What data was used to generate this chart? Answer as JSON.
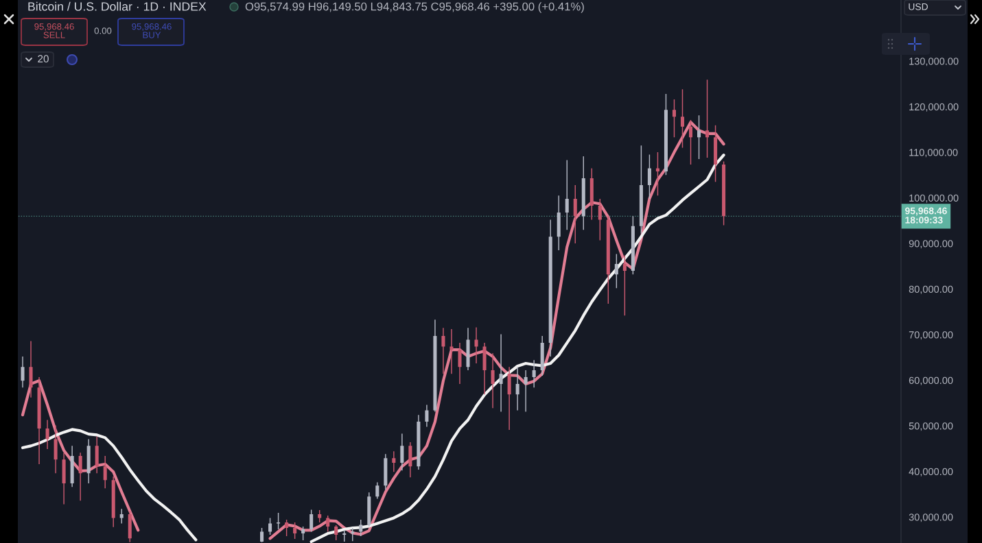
{
  "chart_data": {
    "type": "candlestick",
    "title": "Bitcoin / U.S. Dollar · 1D · INDEX",
    "subtitle": "O95,574.99 H96,149.50 L94,843.75 C95,968.46 +395.00 (+0.41%)",
    "categories": [
      null,
      null,
      null,
      null,
      null,
      null,
      null,
      null,
      null,
      null,
      null,
      null,
      null,
      null,
      null,
      null,
      null,
      null,
      null,
      null,
      null,
      null,
      null,
      null,
      null,
      null,
      null,
      null,
      null,
      null,
      null,
      null,
      null,
      null,
      null,
      null,
      null,
      null,
      null,
      null,
      null,
      null,
      null,
      null,
      null,
      null,
      null,
      null,
      null,
      null,
      null,
      null,
      null,
      null,
      null,
      null,
      null,
      null,
      null,
      null,
      null,
      null,
      null,
      null,
      null,
      null,
      null,
      null,
      null,
      null,
      null,
      null,
      null,
      null,
      null,
      null,
      null,
      null,
      null,
      null,
      null,
      null,
      null,
      null,
      null,
      null,
      null,
      null,
      null,
      null,
      null,
      null,
      null,
      null,
      null,
      null,
      null,
      null,
      null,
      null,
      null,
      null,
      null,
      null,
      null,
      null,
      null
    ],
    "ohlc": [
      [
        59900,
        65200,
        58400,
        62900
      ],
      [
        62900,
        68600,
        56200,
        58400
      ],
      [
        58400,
        60700,
        41600,
        49400
      ],
      [
        49400,
        51300,
        44900,
        47100
      ],
      [
        47100,
        50100,
        39600,
        42600
      ],
      [
        42600,
        44100,
        32800,
        37400
      ],
      [
        37400,
        45600,
        36600,
        43400
      ],
      [
        43400,
        44100,
        33600,
        39600
      ],
      [
        39600,
        47100,
        37400,
        45600
      ],
      [
        45600,
        47700,
        39600,
        41100
      ],
      [
        41100,
        43400,
        36300,
        38100
      ],
      [
        38100,
        38900,
        27800,
        29800
      ],
      [
        29800,
        31800,
        28600,
        30600
      ],
      [
        30600,
        31300,
        24500,
        25300
      ],
      null,
      null,
      null,
      null,
      null,
      null,
      null,
      null,
      null,
      null,
      null,
      null,
      null,
      null,
      null,
      [
        24600,
        27600,
        24500,
        26800
      ],
      [
        26800,
        29800,
        26100,
        28600
      ],
      [
        28600,
        30900,
        27300,
        28800
      ],
      [
        28800,
        29400,
        25800,
        27600
      ],
      [
        27600,
        28800,
        25200,
        26400
      ],
      [
        26400,
        27900,
        24900,
        27300
      ],
      [
        27300,
        31600,
        26800,
        30600
      ],
      [
        30600,
        31500,
        28800,
        29800
      ],
      [
        29800,
        30300,
        26800,
        27900
      ],
      [
        27900,
        28200,
        24900,
        26100
      ],
      [
        26100,
        27100,
        24600,
        26400
      ],
      [
        26400,
        27600,
        24700,
        26800
      ],
      [
        26800,
        29400,
        25800,
        28300
      ],
      [
        28300,
        35400,
        27900,
        34500
      ],
      [
        34500,
        37600,
        34000,
        36900
      ],
      [
        36900,
        43800,
        36000,
        42900
      ],
      [
        42900,
        44400,
        39900,
        41900
      ],
      [
        41900,
        48300,
        40200,
        45600
      ],
      [
        45600,
        46400,
        38700,
        41100
      ],
      [
        41100,
        52400,
        40400,
        50900
      ],
      [
        50900,
        54600,
        49800,
        53400
      ],
      [
        53400,
        73300,
        53100,
        69700
      ],
      [
        69700,
        71500,
        61400,
        67400
      ],
      [
        67400,
        71200,
        61400,
        66700
      ],
      [
        66700,
        68200,
        59200,
        62900
      ],
      [
        62900,
        71500,
        62200,
        68900
      ],
      [
        68900,
        71600,
        63700,
        67400
      ],
      [
        67400,
        68200,
        56900,
        62200
      ],
      [
        62200,
        65900,
        53900,
        59200
      ],
      [
        59200,
        70100,
        53100,
        61400
      ],
      [
        61400,
        62900,
        49100,
        56900
      ],
      [
        56900,
        62900,
        53400,
        59200
      ],
      [
        59200,
        62200,
        53100,
        60700
      ],
      [
        60700,
        64400,
        58400,
        62200
      ],
      [
        62200,
        69700,
        61000,
        68200
      ],
      [
        68200,
        95200,
        65200,
        91500
      ],
      [
        91500,
        100500,
        88500,
        96800
      ],
      [
        96800,
        108300,
        93000,
        99800
      ],
      [
        99800,
        102800,
        90000,
        96000
      ],
      [
        96000,
        109100,
        93000,
        104300
      ],
      [
        104300,
        106500,
        95200,
        98300
      ],
      [
        98300,
        99800,
        90700,
        95200
      ],
      [
        95200,
        96000,
        76800,
        83200
      ],
      [
        83200,
        87700,
        80200,
        85500
      ],
      [
        85500,
        87400,
        74200,
        84000
      ],
      [
        84000,
        96000,
        83200,
        93800
      ],
      [
        93800,
        111500,
        92200,
        102800
      ],
      [
        102800,
        109500,
        99800,
        106500
      ],
      [
        106500,
        110000,
        100500,
        105800
      ],
      [
        105800,
        122800,
        105000,
        119300
      ],
      [
        119300,
        121600,
        113300,
        117800
      ],
      [
        117800,
        123800,
        111000,
        115600
      ],
      [
        115600,
        117100,
        107300,
        113300
      ],
      [
        113300,
        118100,
        108500,
        114800
      ],
      [
        114800,
        125900,
        108800,
        113300
      ],
      [
        113300,
        115900,
        103500,
        107300
      ],
      [
        107300,
        108000,
        94000,
        96000
      ],
      null,
      null,
      null,
      null,
      null,
      null,
      null,
      null,
      null,
      null,
      null,
      null,
      null,
      null,
      null,
      null,
      null,
      null,
      null,
      null,
      null
    ],
    "colors": [
      "#b4b8c4",
      "#c9596f",
      "#c9596f",
      "#c9596f",
      "#c9596f",
      "#c9596f",
      "#b4b8c4",
      "#c9596f",
      "#b4b8c4",
      "#c9596f",
      "#c9596f",
      "#c9596f",
      "#b4b8c4",
      "#c9596f",
      null,
      null,
      null,
      null,
      null,
      null,
      null,
      null,
      null,
      null,
      null,
      null,
      null,
      null,
      null,
      "#b4b8c4",
      "#b4b8c4",
      "#b4b8c4",
      "#c9596f",
      "#c9596f",
      "#b4b8c4",
      "#b4b8c4",
      "#c9596f",
      "#c9596f",
      "#c9596f",
      "#b4b8c4",
      "#b4b8c4",
      "#b4b8c4",
      "#b4b8c4",
      "#b4b8c4",
      "#b4b8c4",
      "#c9596f",
      "#b4b8c4",
      "#c9596f",
      "#b4b8c4",
      "#b4b8c4",
      "#b4b8c4",
      "#c9596f",
      "#c9596f",
      "#c9596f",
      "#b4b8c4",
      "#c9596f",
      "#c9596f",
      "#c9596f",
      "#b4b8c4",
      "#c9596f",
      "#b4b8c4",
      "#b4b8c4",
      "#b4b8c4",
      "#b4b8c4",
      "#b4b8c4",
      "#b4b8c4",
      "#b4b8c4",
      "#c9596f",
      "#b4b8c4",
      "#c9596f",
      "#c9596f",
      "#c9596f",
      "#b4b8c4",
      "#c9596f",
      "#b4b8c4",
      "#b4b8c4",
      "#b4b8c4",
      "#c9596f",
      "#b4b8c4",
      "#c9596f",
      "#c9596f",
      "#c9596f",
      "#b4b8c4",
      "#c9596f",
      "#c9596f",
      "#c9596f",
      null,
      null,
      null,
      null,
      null,
      null,
      null,
      null,
      null,
      null,
      null,
      null,
      null,
      null,
      null,
      null,
      null,
      null,
      null,
      null,
      null
    ],
    "series": [
      {
        "type": "line",
        "color": "#e27d93",
        "values": [
          52400,
          59200,
          59900,
          54600,
          48900,
          44600,
          42200,
          40100,
          40200,
          41300,
          41600,
          39900,
          35500,
          31300,
          27100,
          null,
          null,
          null,
          null,
          null,
          null,
          null,
          null,
          null,
          null,
          null,
          null,
          null,
          null,
          null,
          25300,
          26800,
          28300,
          28000,
          27100,
          27100,
          28000,
          29200,
          29100,
          27600,
          26500,
          26200,
          27000,
          31300,
          35500,
          38500,
          41100,
          42600,
          43100,
          45600,
          50900,
          59900,
          66700,
          66700,
          65200,
          65900,
          66400,
          65200,
          62800,
          61100,
          61000,
          59200,
          59800,
          61400,
          67100,
          78300,
          89200,
          95500,
          97500,
          99000,
          98700,
          95800,
          90700,
          85800,
          84400,
          90900,
          99800,
          104000,
          106500,
          110000,
          113300,
          116600,
          114800,
          114100,
          114100,
          111800,
          null,
          null,
          null,
          null,
          null,
          null,
          null,
          null,
          null,
          null,
          null,
          null,
          null,
          null,
          null,
          null,
          null,
          null,
          null,
          null,
          null
        ]
      },
      {
        "type": "line",
        "color": "#f2f2f2",
        "values": [
          45200,
          45600,
          46200,
          47000,
          47900,
          48600,
          49200,
          48900,
          48200,
          48000,
          47400,
          45600,
          43100,
          40400,
          38000,
          35700,
          33900,
          32500,
          31000,
          29400,
          27100,
          25000,
          null,
          null,
          null,
          null,
          null,
          null,
          null,
          null,
          null,
          null,
          null,
          null,
          null,
          24600,
          25500,
          26400,
          26800,
          27300,
          27600,
          27700,
          28000,
          28600,
          29200,
          29800,
          30700,
          31900,
          33700,
          36100,
          38900,
          42600,
          46700,
          49400,
          51300,
          54300,
          56800,
          58700,
          60400,
          61700,
          63100,
          63700,
          63400,
          63200,
          63700,
          65500,
          68200,
          70900,
          74200,
          77200,
          79800,
          82300,
          84400,
          86700,
          88900,
          91500,
          94200,
          95500,
          96200,
          97800,
          99500,
          101000,
          102500,
          104000,
          107300,
          109400,
          null,
          null,
          null,
          null,
          null,
          null,
          null,
          null,
          null,
          null,
          null,
          null,
          null,
          null,
          null,
          null,
          null,
          null,
          null,
          null,
          null
        ]
      }
    ],
    "ylim": [
      24300,
      143400
    ],
    "yticks": [
      {
        "value": 30000,
        "label": "30,000.00"
      },
      {
        "value": 40000,
        "label": "40,000.00"
      },
      {
        "value": 50000,
        "label": "50,000.00"
      },
      {
        "value": 60000,
        "label": "60,000.00"
      },
      {
        "value": 70000,
        "label": "70,000.00"
      },
      {
        "value": 80000,
        "label": "80,000.00"
      },
      {
        "value": 90000,
        "label": "90,000.00"
      },
      {
        "value": 100000,
        "label": "100,000.00"
      },
      {
        "value": 110000,
        "label": "110,000.00"
      },
      {
        "value": 120000,
        "label": "120,000.00"
      },
      {
        "value": 130000,
        "label": "130,000.00"
      }
    ],
    "tick_labels": "y",
    "ref_lines": [
      {
        "axis": "y",
        "value": 95968.46,
        "label": "95,968.46\n18:09:33",
        "color": "#5fb3a1",
        "line_style": "dotted"
      }
    ],
    "annotations": [
      "95,968.46\nSELL",
      "0.00",
      "95,968.46\nBUY",
      "20",
      "USD"
    ]
  }
}
